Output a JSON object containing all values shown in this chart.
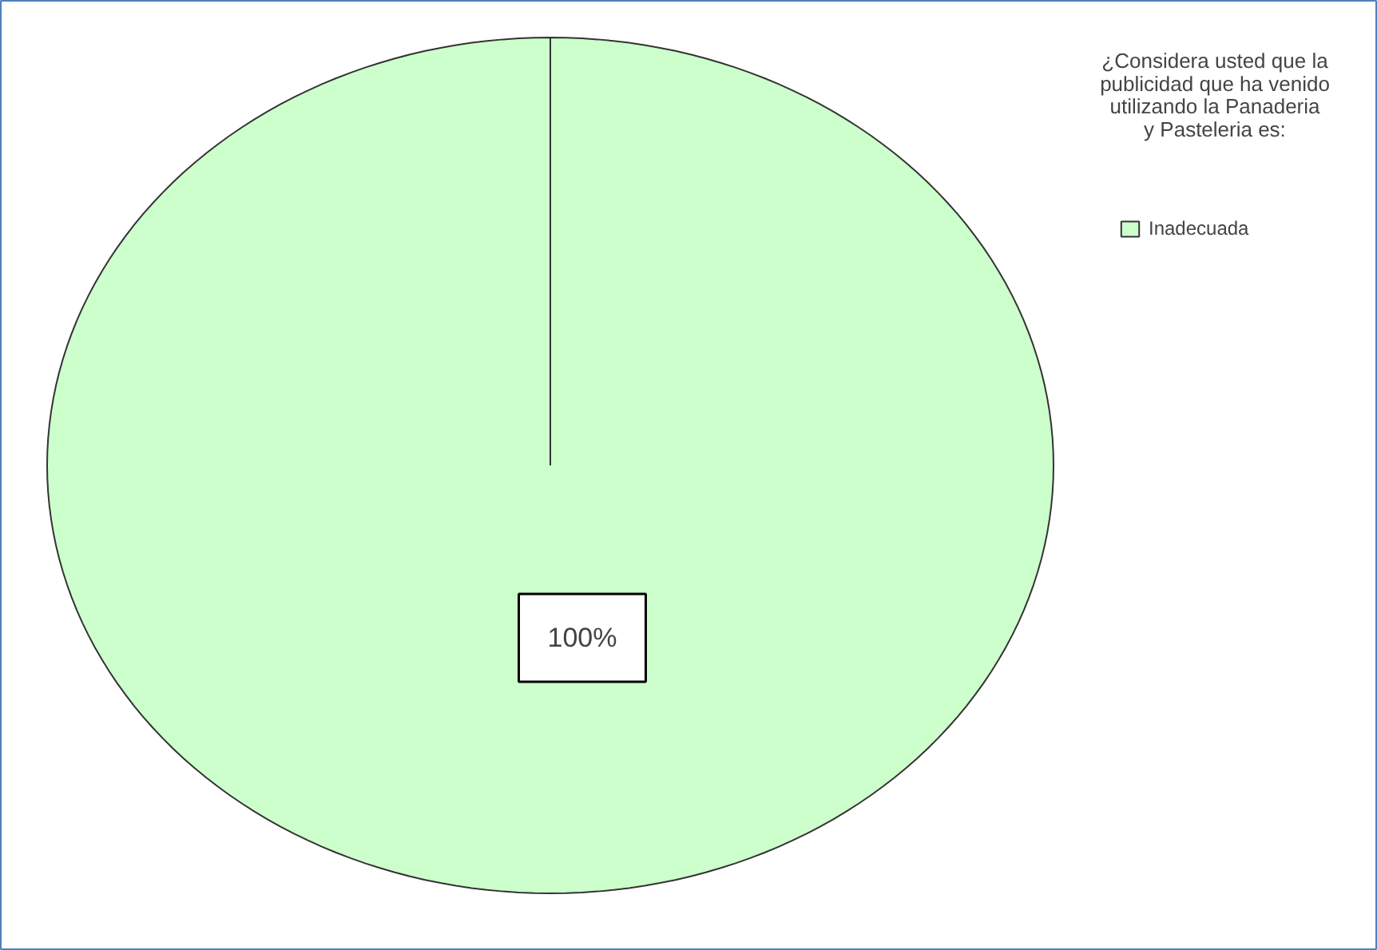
{
  "chart_data": {
    "type": "pie",
    "legend_title": "¿Considera usted que la publicidad que ha venido utilizando la Panaderia y Pasteleria es:",
    "categories": [
      "Inadecuada"
    ],
    "values": [
      100
    ],
    "colors": [
      "#ccffcc"
    ],
    "value_labels": [
      "100%"
    ],
    "legend": "top right"
  }
}
